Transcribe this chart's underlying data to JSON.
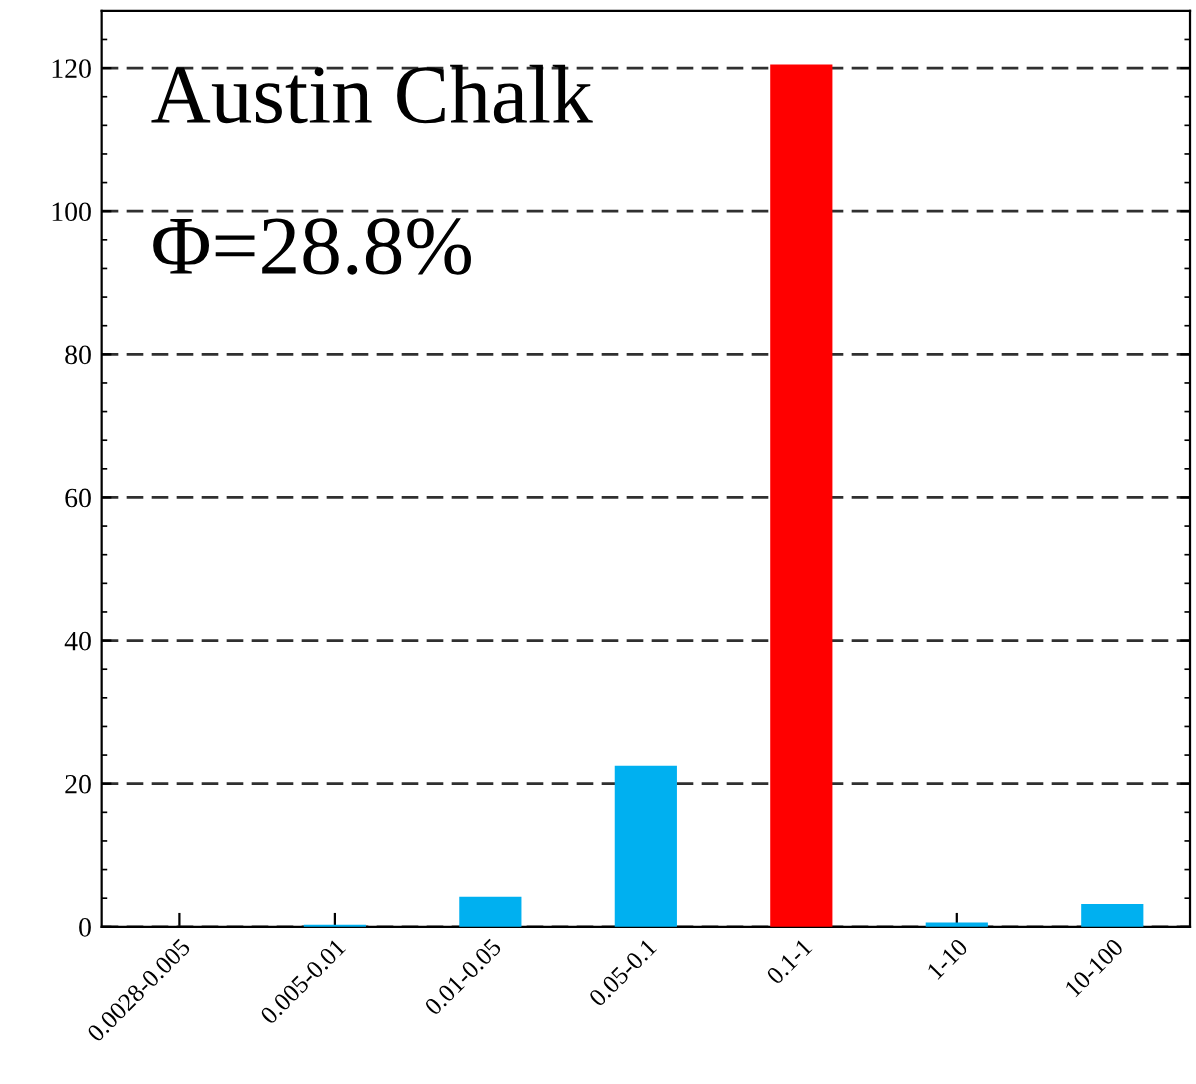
{
  "chart_data": {
    "type": "bar",
    "categories": [
      "0.0028-0.005",
      "0.005-0.01",
      "0.01-0.05",
      "0.05-0.1",
      "0.1-1",
      "1-10",
      "10-100"
    ],
    "values": [
      0,
      0.3,
      4.2,
      22.5,
      120.5,
      0.6,
      3.2
    ],
    "colors": [
      "#00b0f0",
      "#00b0f0",
      "#00b0f0",
      "#00b0f0",
      "#ff0000",
      "#00b0f0",
      "#00b0f0"
    ],
    "ylim": [
      0,
      128
    ],
    "yticks": [
      0,
      20,
      40,
      60,
      80,
      100,
      120
    ],
    "grid": "y",
    "annotations": [
      "Austin Chalk",
      "Φ=28.8%"
    ]
  }
}
